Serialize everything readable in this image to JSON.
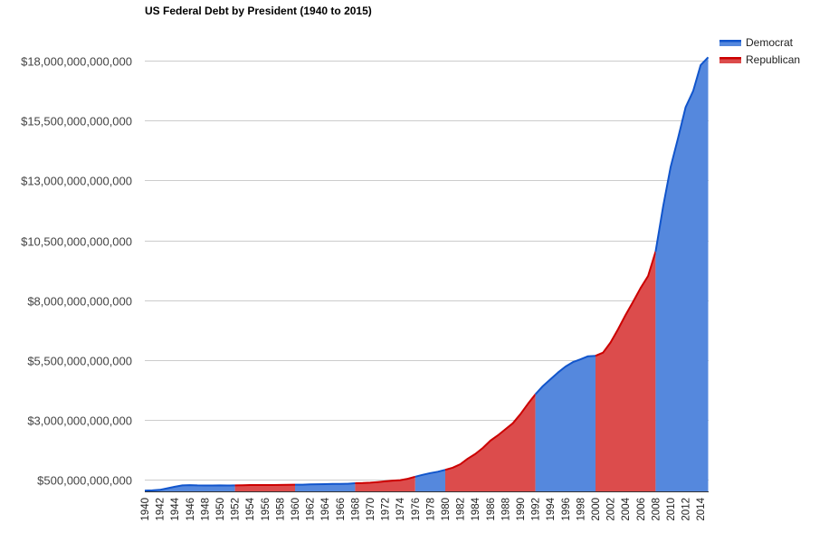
{
  "chart_data": {
    "type": "area",
    "title": "US Federal Debt by President (1940 to 2015)",
    "xlabel": "",
    "ylabel": "",
    "ylim": [
      0,
      19000000000000
    ],
    "y_ticks": [
      500000000000,
      3000000000000,
      5500000000000,
      8000000000000,
      10500000000000,
      13000000000000,
      15500000000000,
      18000000000000
    ],
    "y_tick_labels": [
      "$500,000,000,000",
      "$3,000,000,000,000",
      "$5,500,000,000,000",
      "$8,000,000,000,000",
      "$10,500,000,000,000",
      "$13,000,000,000,000",
      "$15,500,000,000,000",
      "$18,000,000,000,000"
    ],
    "x_tick_labels": [
      "1940",
      "1942",
      "1944",
      "1946",
      "1948",
      "1950",
      "1952",
      "1954",
      "1956",
      "1958",
      "1960",
      "1962",
      "1964",
      "1966",
      "1968",
      "1970",
      "1972",
      "1974",
      "1976",
      "1978",
      "1980",
      "1982",
      "1984",
      "1986",
      "1988",
      "1990",
      "1992",
      "1994",
      "1996",
      "1998",
      "2000",
      "2002",
      "2004",
      "2006",
      "2008",
      "2010",
      "2012",
      "2014"
    ],
    "grid": true,
    "legend_position": "top-right",
    "series": [
      {
        "name": "Democrat",
        "line_color": "#1155cc",
        "fill_color": "#5588dd"
      },
      {
        "name": "Republican",
        "line_color": "#cc0000",
        "fill_color": "#dc4c4c"
      }
    ],
    "segments": [
      {
        "party": "Democrat",
        "from": 1940,
        "to": 1952
      },
      {
        "party": "Republican",
        "from": 1952,
        "to": 1960
      },
      {
        "party": "Democrat",
        "from": 1960,
        "to": 1968
      },
      {
        "party": "Republican",
        "from": 1968,
        "to": 1976
      },
      {
        "party": "Democrat",
        "from": 1976,
        "to": 1980
      },
      {
        "party": "Republican",
        "from": 1980,
        "to": 1992
      },
      {
        "party": "Democrat",
        "from": 1992,
        "to": 2000
      },
      {
        "party": "Republican",
        "from": 2000,
        "to": 2008
      },
      {
        "party": "Democrat",
        "from": 2008,
        "to": 2015
      }
    ],
    "x": [
      1940,
      1941,
      1942,
      1943,
      1944,
      1945,
      1946,
      1947,
      1948,
      1949,
      1950,
      1951,
      1952,
      1953,
      1954,
      1955,
      1956,
      1957,
      1958,
      1959,
      1960,
      1961,
      1962,
      1963,
      1964,
      1965,
      1966,
      1967,
      1968,
      1969,
      1970,
      1971,
      1972,
      1973,
      1974,
      1975,
      1976,
      1977,
      1978,
      1979,
      1980,
      1981,
      1982,
      1983,
      1984,
      1985,
      1986,
      1987,
      1988,
      1989,
      1990,
      1991,
      1992,
      1993,
      1994,
      1995,
      1996,
      1997,
      1998,
      1999,
      2000,
      2001,
      2002,
      2003,
      2004,
      2005,
      2006,
      2007,
      2008,
      2009,
      2010,
      2011,
      2012,
      2013,
      2014,
      2015
    ],
    "y_trillions": [
      0.043,
      0.049,
      0.072,
      0.137,
      0.201,
      0.259,
      0.269,
      0.258,
      0.252,
      0.253,
      0.257,
      0.255,
      0.259,
      0.266,
      0.271,
      0.274,
      0.273,
      0.271,
      0.276,
      0.285,
      0.286,
      0.289,
      0.298,
      0.306,
      0.312,
      0.317,
      0.32,
      0.326,
      0.348,
      0.354,
      0.371,
      0.398,
      0.427,
      0.458,
      0.475,
      0.533,
      0.62,
      0.699,
      0.772,
      0.827,
      0.908,
      0.998,
      1.142,
      1.377,
      1.572,
      1.823,
      2.125,
      2.35,
      2.602,
      2.857,
      3.233,
      3.665,
      4.065,
      4.411,
      4.693,
      4.974,
      5.225,
      5.413,
      5.526,
      5.656,
      5.674,
      5.807,
      6.228,
      6.783,
      7.379,
      7.933,
      8.507,
      9.008,
      10.025,
      11.91,
      13.562,
      14.79,
      16.066,
      16.738,
      17.824,
      18.151
    ]
  }
}
